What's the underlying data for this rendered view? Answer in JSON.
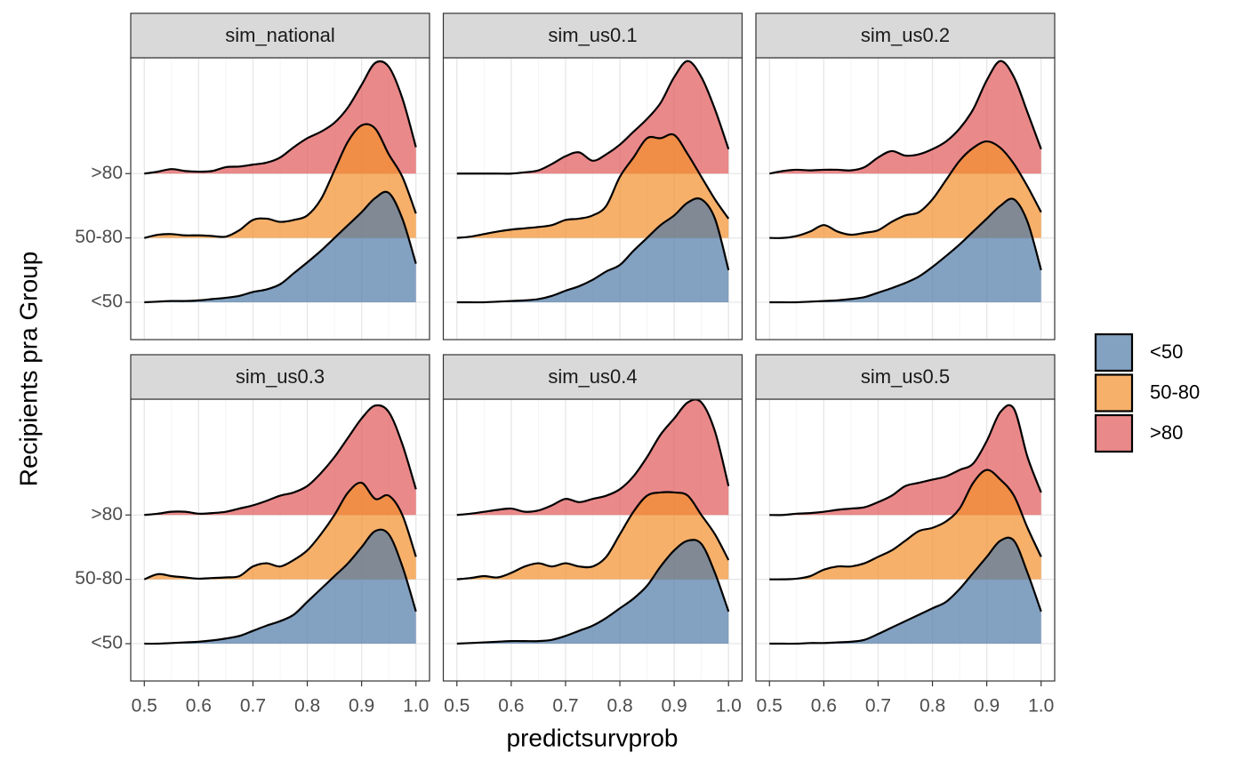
{
  "chart_data": {
    "type": "ridgeline",
    "xlabel": "predictsurvprob",
    "ylabel": "Recipients pra Group",
    "categories": [
      "<50",
      "50-80",
      ">80"
    ],
    "colors": [
      "#4e79a7",
      "#f28e2b",
      "#e15759"
    ],
    "legend": "right",
    "grid": true,
    "x": [
      0.5,
      0.525,
      0.55,
      0.575,
      0.6,
      0.625,
      0.65,
      0.675,
      0.7,
      0.725,
      0.75,
      0.775,
      0.8,
      0.825,
      0.85,
      0.875,
      0.9,
      0.925,
      0.95,
      0.975,
      1.0
    ],
    "xlim": [
      0.475,
      1.025
    ],
    "xticks": [
      0.5,
      0.6,
      0.7,
      0.8,
      0.9,
      {
        "value": 1,
        "label": "1.0"
      }
    ],
    "xminor": [
      0.55,
      0.65,
      0.75,
      0.85,
      0.95
    ],
    "ylim": [
      -0.58,
      3.8
    ],
    "facets": [
      {
        "title": "sim_national",
        "series": [
          {
            "values": [
              0,
              0.01,
              0.02,
              0.02,
              0.03,
              0.05,
              0.07,
              0.1,
              0.16,
              0.2,
              0.28,
              0.45,
              0.62,
              0.8,
              1.0,
              1.2,
              1.4,
              1.62,
              1.7,
              1.3,
              0.6
            ]
          },
          {
            "values": [
              0,
              0.05,
              0.06,
              0.04,
              0.04,
              0.03,
              0.02,
              0.12,
              0.28,
              0.3,
              0.25,
              0.28,
              0.35,
              0.6,
              1.05,
              1.5,
              1.75,
              1.7,
              1.3,
              0.95,
              0.38
            ]
          },
          {
            "values": [
              0,
              0.03,
              0.07,
              0.04,
              0.03,
              0.04,
              0.1,
              0.11,
              0.14,
              0.17,
              0.25,
              0.41,
              0.55,
              0.65,
              0.79,
              1.03,
              1.38,
              1.72,
              1.66,
              1.17,
              0.41
            ]
          }
        ]
      },
      {
        "title": "sim_us0.1",
        "series": [
          {
            "values": [
              0,
              0,
              0,
              0.01,
              0.02,
              0.03,
              0.05,
              0.1,
              0.18,
              0.25,
              0.35,
              0.48,
              0.58,
              0.8,
              1.0,
              1.2,
              1.35,
              1.55,
              1.6,
              1.3,
              0.5
            ]
          },
          {
            "values": [
              0,
              0.02,
              0.06,
              0.1,
              0.13,
              0.15,
              0.17,
              0.2,
              0.28,
              0.3,
              0.35,
              0.5,
              0.95,
              1.25,
              1.55,
              1.55,
              1.6,
              1.3,
              0.95,
              0.6,
              0.3
            ]
          },
          {
            "values": [
              0,
              0,
              0,
              0,
              0,
              0.02,
              0.05,
              0.15,
              0.27,
              0.33,
              0.2,
              0.3,
              0.45,
              0.65,
              0.85,
              1.1,
              1.5,
              1.75,
              1.5,
              1.0,
              0.38
            ]
          }
        ]
      },
      {
        "title": "sim_us0.2",
        "series": [
          {
            "values": [
              0,
              0,
              0,
              0.01,
              0.02,
              0.03,
              0.05,
              0.08,
              0.15,
              0.22,
              0.3,
              0.4,
              0.55,
              0.72,
              0.9,
              1.1,
              1.3,
              1.5,
              1.6,
              1.25,
              0.5
            ]
          },
          {
            "values": [
              0,
              0,
              0.03,
              0.1,
              0.2,
              0.1,
              0.05,
              0.08,
              0.12,
              0.25,
              0.35,
              0.4,
              0.6,
              0.9,
              1.2,
              1.4,
              1.5,
              1.4,
              1.15,
              0.8,
              0.4
            ]
          },
          {
            "values": [
              0,
              0.04,
              0.06,
              0.05,
              0.06,
              0.06,
              0.05,
              0.1,
              0.25,
              0.35,
              0.28,
              0.3,
              0.38,
              0.5,
              0.7,
              1.0,
              1.45,
              1.75,
              1.5,
              0.95,
              0.38
            ]
          }
        ]
      },
      {
        "title": "sim_us0.3",
        "series": [
          {
            "values": [
              0,
              0,
              0.01,
              0.02,
              0.03,
              0.05,
              0.08,
              0.12,
              0.2,
              0.28,
              0.35,
              0.45,
              0.65,
              0.85,
              1.05,
              1.25,
              1.5,
              1.75,
              1.7,
              1.2,
              0.5
            ]
          },
          {
            "values": [
              0,
              0.08,
              0.05,
              0.03,
              0.01,
              0.02,
              0.03,
              0.05,
              0.2,
              0.25,
              0.2,
              0.3,
              0.45,
              0.7,
              1.0,
              1.35,
              1.5,
              1.25,
              1.3,
              1.0,
              0.35
            ]
          },
          {
            "values": [
              0,
              0.02,
              0.05,
              0.05,
              0.02,
              0.03,
              0.05,
              0.1,
              0.15,
              0.22,
              0.3,
              0.35,
              0.45,
              0.65,
              0.9,
              1.2,
              1.5,
              1.7,
              1.6,
              1.1,
              0.4
            ]
          }
        ]
      },
      {
        "title": "sim_us0.4",
        "series": [
          {
            "values": [
              0,
              0.01,
              0.02,
              0.03,
              0.04,
              0.04,
              0.04,
              0.06,
              0.12,
              0.2,
              0.28,
              0.4,
              0.55,
              0.7,
              0.9,
              1.2,
              1.45,
              1.6,
              1.55,
              1.1,
              0.5
            ]
          },
          {
            "values": [
              0,
              0.02,
              0.05,
              0.03,
              0.1,
              0.2,
              0.25,
              0.2,
              0.25,
              0.2,
              0.2,
              0.35,
              0.7,
              1.05,
              1.3,
              1.35,
              1.35,
              1.3,
              1.0,
              0.7,
              0.3
            ]
          },
          {
            "values": [
              0,
              0.02,
              0.05,
              0.08,
              0.1,
              0.05,
              0.07,
              0.15,
              0.25,
              0.2,
              0.25,
              0.3,
              0.4,
              0.6,
              0.9,
              1.25,
              1.5,
              1.75,
              1.75,
              1.3,
              0.45
            ]
          }
        ]
      },
      {
        "title": "sim_us0.5",
        "series": [
          {
            "values": [
              0,
              0,
              0,
              0.01,
              0.01,
              0.02,
              0.03,
              0.06,
              0.15,
              0.25,
              0.35,
              0.45,
              0.55,
              0.65,
              0.85,
              1.1,
              1.35,
              1.6,
              1.6,
              1.1,
              0.5
            ]
          },
          {
            "values": [
              0,
              0,
              0.01,
              0.05,
              0.15,
              0.2,
              0.2,
              0.25,
              0.35,
              0.45,
              0.6,
              0.75,
              0.8,
              0.9,
              1.1,
              1.5,
              1.7,
              1.55,
              1.3,
              0.8,
              0.35
            ]
          },
          {
            "values": [
              0,
              0,
              0.02,
              0.03,
              0.05,
              0.08,
              0.1,
              0.12,
              0.2,
              0.3,
              0.45,
              0.5,
              0.55,
              0.6,
              0.7,
              0.8,
              1.15,
              1.6,
              1.65,
              0.9,
              0.35
            ]
          }
        ]
      }
    ]
  }
}
